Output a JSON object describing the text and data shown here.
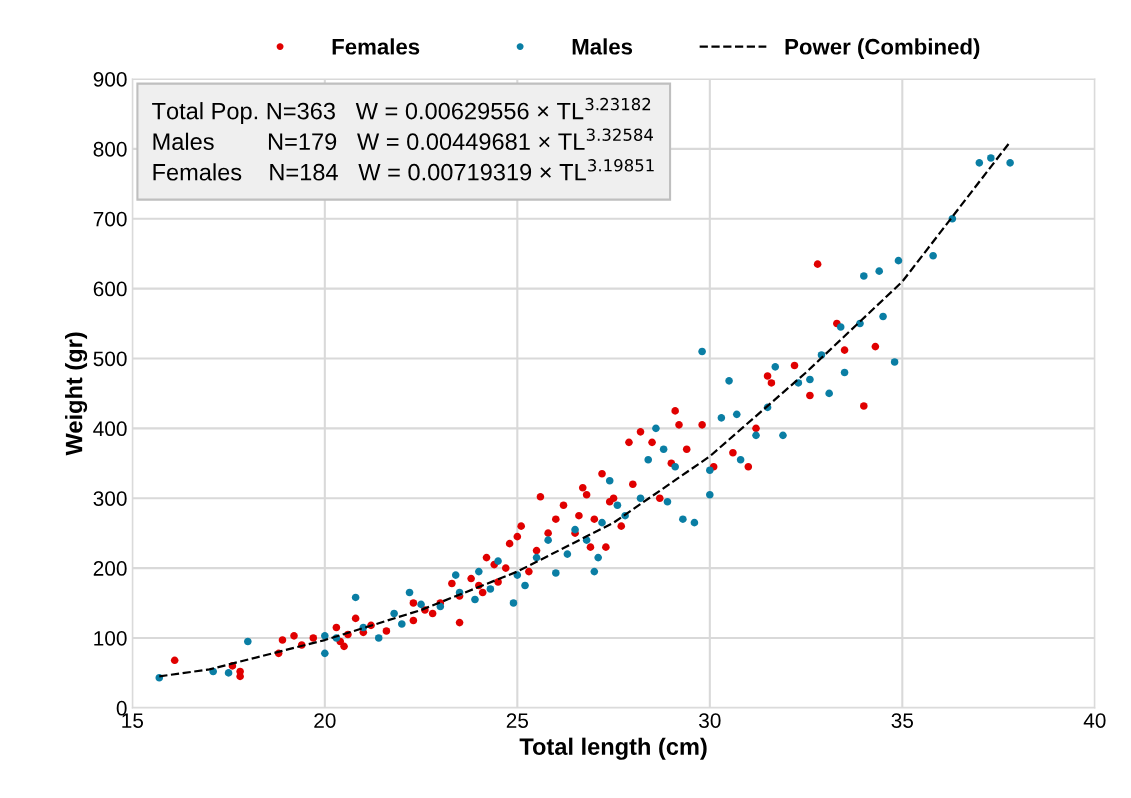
{
  "chart_data": {
    "type": "scatter",
    "xlabel": "Total length (cm)",
    "ylabel": "Weight (gr)",
    "xlim": [
      15,
      40
    ],
    "xticks": [
      15,
      20,
      25,
      30,
      35,
      40
    ],
    "ylim": [
      0,
      900
    ],
    "yticks": [
      0,
      100,
      200,
      300,
      400,
      500,
      600,
      700,
      800,
      900
    ],
    "grid": true,
    "legend": "top",
    "marker": "circle",
    "annotations": [
      "Total Pop. N=363   W = 0.00629556 × TL$^{3.23182}$",
      "Males        N=179   W = 0.00449681 × TL$^{3.32584}$",
      "Females    N=184   W = 0.00719319 × TL$^{3.19851}$"
    ],
    "series": [
      {
        "name": "Females",
        "color": "#e00000",
        "x": [
          16.1,
          17.8,
          17.8,
          17.6,
          18.8,
          18.9,
          19.2,
          19.4,
          19.7,
          20.3,
          20.4,
          20.5,
          20.6,
          20.8,
          21.0,
          21.2,
          21.6,
          22.3,
          22.6,
          22.3,
          22.8,
          23.3,
          23.5,
          23.5,
          23.8,
          24.0,
          24.2,
          24.4,
          24.5,
          24.7,
          24.8,
          25.0,
          25.1,
          25.3,
          25.5,
          25.6,
          25.8,
          26.0,
          26.2,
          26.5,
          26.6,
          26.7,
          26.9,
          27.0,
          27.2,
          27.3,
          27.5,
          27.7,
          27.9,
          28.0,
          28.2,
          28.5,
          28.7,
          29.0,
          29.1,
          29.2,
          29.4,
          29.8,
          30.1,
          30.6,
          31.0,
          31.2,
          31.5,
          31.6,
          32.2,
          32.6,
          32.8,
          33.3,
          33.5,
          34.0,
          34.3,
          26.8,
          27.4,
          23.0,
          24.1
        ],
        "values": [
          68,
          52,
          45,
          60,
          78,
          97,
          103,
          90,
          100,
          115,
          95,
          88,
          105,
          128,
          108,
          118,
          110,
          150,
          140,
          125,
          135,
          178,
          122,
          160,
          185,
          175,
          215,
          205,
          180,
          200,
          235,
          245,
          260,
          195,
          225,
          302,
          250,
          270,
          290,
          250,
          275,
          315,
          230,
          270,
          335,
          230,
          300,
          260,
          380,
          320,
          395,
          380,
          300,
          350,
          425,
          405,
          370,
          405,
          345,
          365,
          345,
          400,
          475,
          465,
          490,
          447,
          635,
          550,
          512,
          432,
          517,
          305,
          295,
          150,
          165
        ]
      },
      {
        "name": "Males",
        "color": "#0a7ea4",
        "x": [
          15.7,
          17.1,
          17.5,
          18.0,
          20.0,
          20.0,
          20.3,
          20.8,
          21.0,
          21.4,
          21.8,
          22.0,
          22.2,
          22.5,
          23.0,
          23.4,
          23.5,
          23.9,
          24.0,
          24.3,
          24.5,
          24.9,
          25.0,
          25.2,
          25.5,
          25.8,
          26.0,
          26.3,
          26.5,
          26.8,
          27.0,
          27.1,
          27.2,
          27.4,
          27.6,
          27.8,
          28.2,
          28.4,
          28.6,
          28.8,
          28.9,
          29.1,
          29.3,
          29.6,
          29.8,
          30.0,
          30.0,
          30.3,
          30.5,
          30.7,
          30.8,
          31.2,
          31.5,
          31.7,
          31.9,
          32.3,
          32.6,
          32.9,
          33.1,
          33.4,
          33.5,
          33.9,
          34.0,
          34.4,
          34.5,
          34.8,
          34.9,
          35.8,
          36.3,
          37.0,
          37.3,
          37.8
        ],
        "values": [
          43,
          52,
          50,
          95,
          78,
          103,
          100,
          158,
          115,
          100,
          135,
          120,
          165,
          148,
          145,
          190,
          165,
          155,
          195,
          170,
          210,
          150,
          190,
          175,
          215,
          240,
          193,
          220,
          255,
          240,
          195,
          215,
          265,
          325,
          290,
          275,
          300,
          355,
          400,
          370,
          295,
          345,
          270,
          265,
          510,
          340,
          305,
          415,
          468,
          420,
          355,
          390,
          430,
          488,
          390,
          465,
          470,
          505,
          450,
          545,
          480,
          550,
          618,
          625,
          560,
          495,
          640,
          647,
          700,
          780,
          787,
          780
        ]
      },
      {
        "name": "Power (Combined)",
        "type": "line",
        "color": "#000000",
        "line_style": "dashed",
        "marker": "none",
        "x": [
          15.7,
          17,
          20,
          22.5,
          25,
          27.5,
          30,
          32.5,
          35,
          37.8
        ],
        "values": [
          45,
          55,
          97,
          140,
          195,
          265,
          360,
          480,
          610,
          810
        ]
      }
    ]
  }
}
